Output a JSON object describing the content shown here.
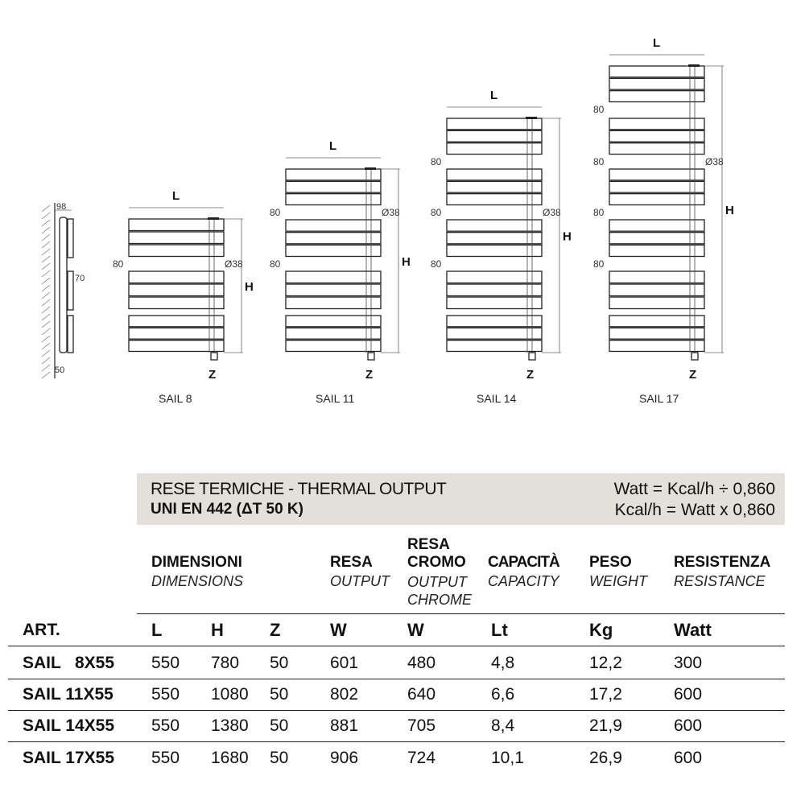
{
  "drawings": {
    "side_view": {
      "depth": "98",
      "spacing": "70",
      "offset": "50"
    },
    "dimension_labels": {
      "width": "L",
      "height": "H",
      "axis": "Z",
      "gap": "80",
      "diameter": "Ø38"
    },
    "models": [
      "SAIL 8",
      "SAIL 11",
      "SAIL 14",
      "SAIL 17"
    ]
  },
  "table": {
    "banner": {
      "title": "RESE TERMICHE - THERMAL OUTPUT",
      "standard": "UNI EN 442 (ΔT 50 K)",
      "formula1": "Watt = Kcal/h ÷ 0,860",
      "formula2": "Kcal/h = Watt x 0,860"
    },
    "headers": [
      {
        "it": "DIMENSIONI",
        "en": "DIMENSIONS"
      },
      {
        "it": "RESA",
        "en": "OUTPUT"
      },
      {
        "it": "RESA CROMO",
        "en": "OUTPUT CHROME"
      },
      {
        "it": "CAPACITÀ",
        "en": "CAPACITY"
      },
      {
        "it": "PESO",
        "en": "WEIGHT"
      },
      {
        "it": "RESISTENZA",
        "en": "RESISTANCE"
      }
    ],
    "art_label": "ART.",
    "units": [
      "L",
      "H",
      "Z",
      "W",
      "W",
      "Lt",
      "Kg",
      "Watt"
    ],
    "rows": [
      [
        "SAIL   8X55",
        "550",
        "780",
        "50",
        "601",
        "480",
        "4,8",
        "12,2",
        "300"
      ],
      [
        "SAIL 11X55",
        "550",
        "1080",
        "50",
        "802",
        "640",
        "6,6",
        "17,2",
        "600"
      ],
      [
        "SAIL 14X55",
        "550",
        "1380",
        "50",
        "881",
        "705",
        "8,4",
        "21,9",
        "600"
      ],
      [
        "SAIL 17X55",
        "550",
        "1680",
        "50",
        "906",
        "724",
        "10,1",
        "26,9",
        "600"
      ]
    ]
  }
}
